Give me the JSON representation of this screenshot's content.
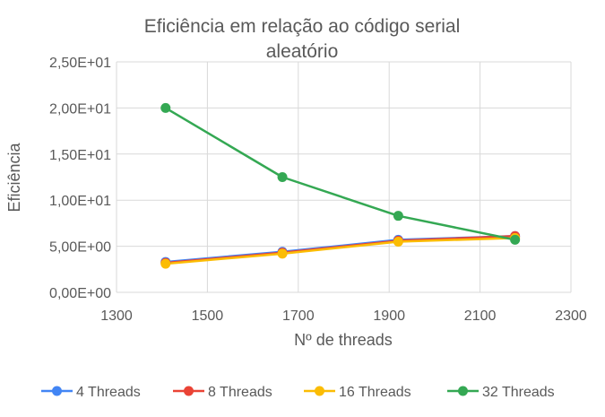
{
  "chart_data": {
    "type": "line",
    "title_line1": "Eficiência em relação ao código serial",
    "title_line2": "aleatório",
    "xlabel": "Nº de threads",
    "ylabel": "Eficiência",
    "xlim": [
      1300,
      2300
    ],
    "ylim": [
      0,
      25
    ],
    "x_ticks": [
      1300,
      1500,
      1700,
      1900,
      2100,
      2300
    ],
    "x_tick_labels": [
      "1300",
      "1500",
      "1700",
      "1900",
      "2100",
      "2300"
    ],
    "y_ticks": [
      0,
      5,
      10,
      15,
      20,
      25
    ],
    "y_tick_labels": [
      "0,00E+00",
      "5,00E+00",
      "1,00E+01",
      "1,50E+01",
      "2,00E+01",
      "2,50E+01"
    ],
    "grid": true,
    "legend_position": "bottom",
    "x": [
      1408,
      1665,
      1920,
      2177
    ],
    "series": [
      {
        "name": "4 Threads",
        "color": "#4285F4",
        "values": [
          3.3,
          4.4,
          5.7,
          6.1
        ]
      },
      {
        "name": "8 Threads",
        "color": "#EA4335",
        "values": [
          3.2,
          4.3,
          5.6,
          6.1
        ]
      },
      {
        "name": "16 Threads",
        "color": "#FBBC04",
        "values": [
          3.1,
          4.2,
          5.5,
          5.9
        ]
      },
      {
        "name": "32 Threads",
        "color": "#34A853",
        "values": [
          20.0,
          12.5,
          8.3,
          5.7
        ]
      }
    ]
  }
}
